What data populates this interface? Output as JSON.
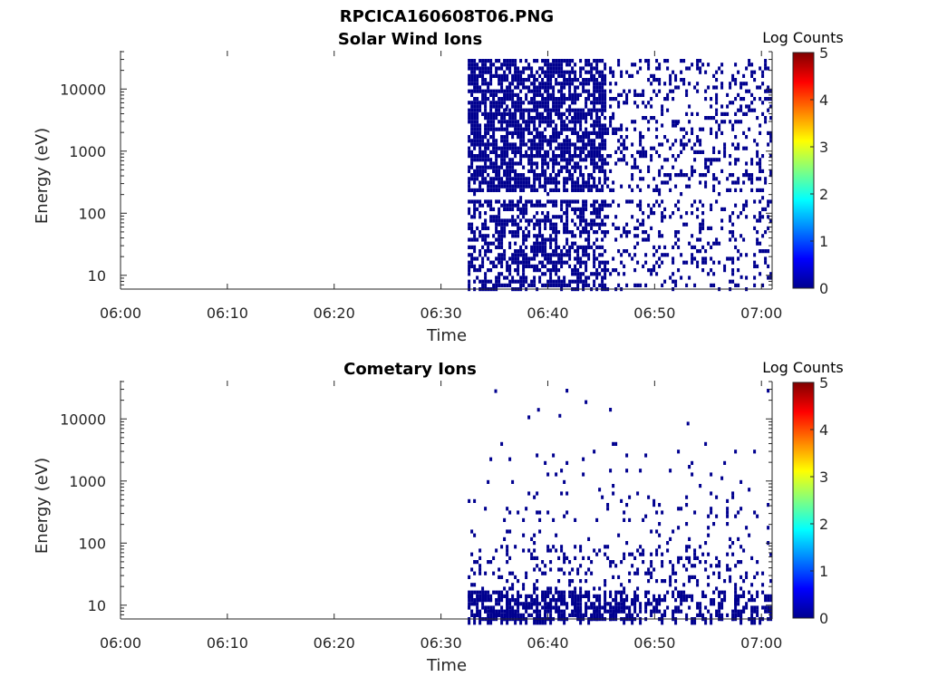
{
  "figure": {
    "title": "RPCICA160608T06.PNG"
  },
  "colors": {
    "counts_dark": "#00008f",
    "axis": "#262626",
    "colormap": [
      "#00008f",
      "#0000ff",
      "#0080ff",
      "#00ffff",
      "#80ff80",
      "#ffff00",
      "#ff8000",
      "#ff0000",
      "#800000"
    ]
  },
  "chart_data": [
    {
      "type": "heatmap",
      "title": "Solar Wind Ions",
      "xlabel": "Time",
      "ylabel": "Energy (eV)",
      "y_scale": "log",
      "xlim": [
        "06:00",
        "07:01"
      ],
      "ylim": [
        6,
        40000
      ],
      "x_ticks": [
        "06:00",
        "06:10",
        "06:20",
        "06:30",
        "06:40",
        "06:50",
        "07:00"
      ],
      "y_ticks": [
        "10",
        "100",
        "1000",
        "10000"
      ],
      "colorbar": {
        "label": "Log Counts",
        "min": 0,
        "max": 5,
        "ticks": [
          "0",
          "1",
          "2",
          "3",
          "4",
          "5"
        ]
      },
      "data_start": "06:32:30",
      "data_end": "07:00:50",
      "cells": [
        {
          "time": "06:36",
          "energy": 5000,
          "log_counts": 0.2
        },
        {
          "time": "06:40",
          "energy": 1500,
          "log_counts": 0.2
        },
        {
          "time": "06:44",
          "energy": 400,
          "log_counts": 0.2
        },
        {
          "time": "06:52",
          "energy": 3000,
          "log_counts": 0.1
        },
        {
          "time": "06:58",
          "energy": 10,
          "log_counts": 0.1
        }
      ]
    },
    {
      "type": "heatmap",
      "title": "Cometary Ions",
      "xlabel": "Time",
      "ylabel": "Energy (eV)",
      "y_scale": "log",
      "xlim": [
        "06:00",
        "07:01"
      ],
      "ylim": [
        6,
        40000
      ],
      "x_ticks": [
        "06:00",
        "06:10",
        "06:20",
        "06:30",
        "06:40",
        "06:50",
        "07:00"
      ],
      "y_ticks": [
        "10",
        "100",
        "1000",
        "10000"
      ],
      "colorbar": {
        "label": "Log Counts",
        "min": 0,
        "max": 5,
        "ticks": [
          "0",
          "1",
          "2",
          "3",
          "4",
          "5"
        ]
      },
      "data_start": "06:32:30",
      "data_end": "07:00:50",
      "cells": [
        {
          "time": "06:35",
          "energy": 30000,
          "log_counts": 0.1
        },
        {
          "time": "06:39",
          "energy": 15000,
          "log_counts": 0.1
        },
        {
          "time": "06:41",
          "energy": 12000,
          "log_counts": 0.1
        },
        {
          "time": "06:53",
          "energy": 9000,
          "log_counts": 0.1
        },
        {
          "time": "06:40",
          "energy": 10,
          "log_counts": 0.2
        }
      ]
    }
  ]
}
